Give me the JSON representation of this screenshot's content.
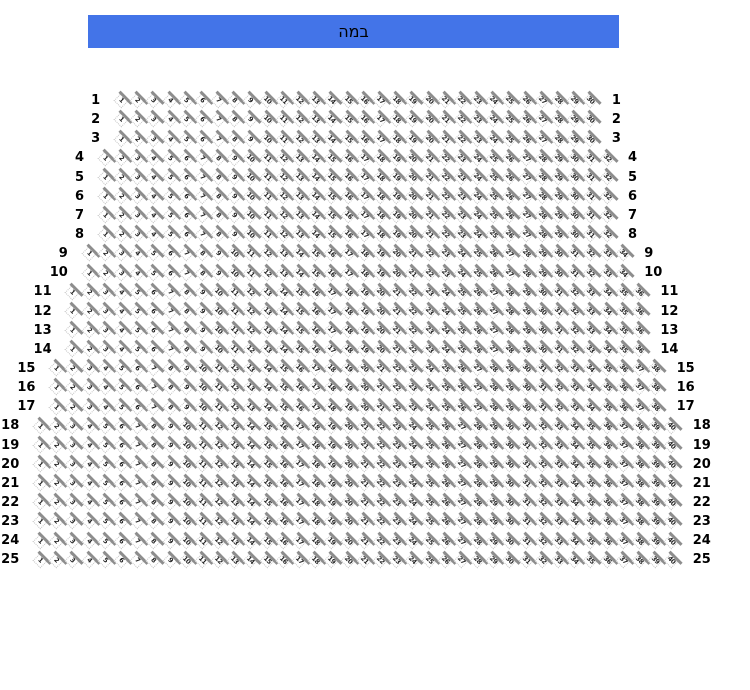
{
  "stage": {
    "label": "במה",
    "background_color": "#4374e8",
    "text_color": "#000000"
  },
  "seating": {
    "numbering": {
      "first_seat": 1,
      "direction": "left-to-right"
    },
    "total_seats": 896,
    "colors": {
      "seat_outline": "#c4c4c4",
      "seat_backrest": "#8d8d8d",
      "seat_number": "#222222",
      "row_label": "#000000"
    },
    "rows": [
      {
        "row_number": "1",
        "seat_count": 30
      },
      {
        "row_number": "2",
        "seat_count": 30
      },
      {
        "row_number": "3",
        "seat_count": 30
      },
      {
        "row_number": "4",
        "seat_count": 32
      },
      {
        "row_number": "5",
        "seat_count": 32
      },
      {
        "row_number": "6",
        "seat_count": 32
      },
      {
        "row_number": "7",
        "seat_count": 32
      },
      {
        "row_number": "8",
        "seat_count": 32
      },
      {
        "row_number": "9",
        "seat_count": 34
      },
      {
        "row_number": "10",
        "seat_count": 34
      },
      {
        "row_number": "11",
        "seat_count": 36
      },
      {
        "row_number": "12",
        "seat_count": 36
      },
      {
        "row_number": "13",
        "seat_count": 36
      },
      {
        "row_number": "14",
        "seat_count": 36
      },
      {
        "row_number": "15",
        "seat_count": 38
      },
      {
        "row_number": "16",
        "seat_count": 38
      },
      {
        "row_number": "17",
        "seat_count": 38
      },
      {
        "row_number": "18",
        "seat_count": 40
      },
      {
        "row_number": "19",
        "seat_count": 40
      },
      {
        "row_number": "20",
        "seat_count": 40
      },
      {
        "row_number": "21",
        "seat_count": 40
      },
      {
        "row_number": "22",
        "seat_count": 40
      },
      {
        "row_number": "23",
        "seat_count": 40
      },
      {
        "row_number": "24",
        "seat_count": 40
      },
      {
        "row_number": "25",
        "seat_count": 40
      }
    ]
  }
}
